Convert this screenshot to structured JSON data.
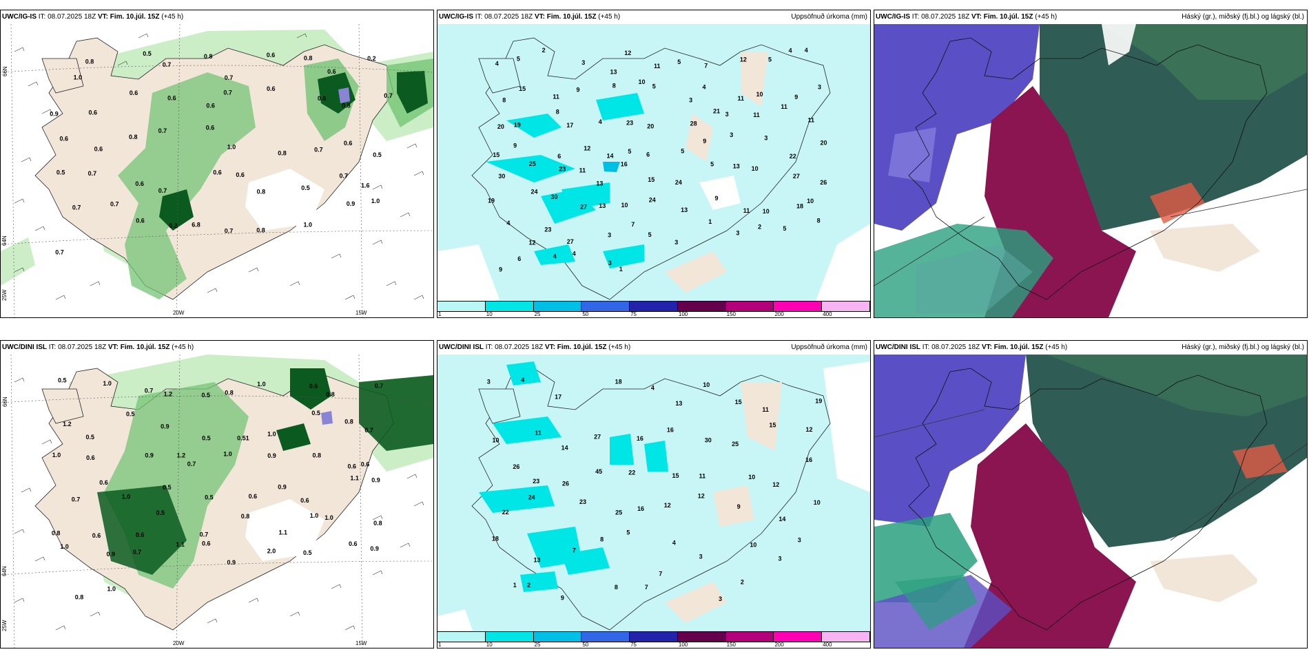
{
  "run_info": "IT: 08.07.2025 18Z",
  "vt_label": "VT:",
  "vt_value": "Fim. 10.júl. 15Z",
  "lead": "(+45 h)",
  "models": [
    "UWC/IG-IS",
    "UWC/DINI ISL"
  ],
  "precip_title": "Uppsöfnuð úrkoma (mm)",
  "cloud_title": "Háský (gr.), miðský (fj.bl.) og lágský (bl.)",
  "legend": {
    "ticks": [
      "1",
      "10",
      "25",
      "50",
      "75",
      "100",
      "150",
      "200",
      "400"
    ],
    "colors": [
      "#b9f7f7",
      "#00e6e6",
      "#00bfe6",
      "#3366e6",
      "#2222aa",
      "#66004d",
      "#b3007a",
      "#ff00b3",
      "#f7b3f2"
    ]
  },
  "axes": {
    "lon_labels": [
      "20W",
      "15W"
    ],
    "lat_labels": [
      "66N",
      "64N"
    ],
    "lon_left": "25W"
  },
  "colors": {
    "land": "#f2e6d9",
    "ocean_precip": "#c8f6f6",
    "green_light": "#cceec6",
    "green_mid": "#74c476",
    "green_dark": "#0b5b20",
    "high_cloud": "#2f5d55",
    "mid_cloud": "#8b1550",
    "low_cloud": "#5a4fc4"
  },
  "rows": [
    {
      "wind_labels": [
        "1.0",
        "0.8",
        "0.5",
        "0.7",
        "0.8",
        "0.7",
        "0.6",
        "0.8",
        "0.6",
        "0.2",
        "0.9",
        "0.6",
        "0.6",
        "0.6",
        "0.6",
        "0.7",
        "0.6",
        "0.6",
        "0.8",
        "0.7",
        "0.6",
        "0.6",
        "0.8",
        "0.7",
        "0.6",
        "1.0",
        "0.8",
        "0.7",
        "0.6",
        "0.5",
        "0.5",
        "0.7",
        "0.6",
        "0.7",
        "0.6",
        "0.6",
        "0.8",
        "0.5",
        "0.7",
        "1.6",
        "0.7",
        "0.7",
        "0.6",
        "0.2",
        "6.8",
        "0.7",
        "0.8",
        "1.0",
        "0.9",
        "1.0",
        "0.7"
      ],
      "precip_labels": [
        "4",
        "5",
        "2",
        "3",
        "13",
        "12",
        "11",
        "5",
        "7",
        "12",
        "5",
        "4",
        "4",
        "8",
        "15",
        "11",
        "9",
        "8",
        "10",
        "5",
        "3",
        "4",
        "11",
        "10",
        "9",
        "3",
        "20",
        "19",
        "8",
        "17",
        "4",
        "23",
        "20",
        "28",
        "21",
        "3",
        "11",
        "11",
        "11",
        "15",
        "9",
        "6",
        "12",
        "14",
        "5",
        "6",
        "5",
        "9",
        "3",
        "3",
        "22",
        "20",
        "30",
        "25",
        "23",
        "11",
        "13",
        "16",
        "15",
        "24",
        "5",
        "13",
        "10",
        "27",
        "26",
        "19",
        "24",
        "30",
        "27",
        "13",
        "10",
        "24",
        "13",
        "9",
        "11",
        "10",
        "18",
        "10",
        "4",
        "12",
        "23",
        "27",
        "3",
        "7",
        "5",
        "3",
        "1",
        "3",
        "2",
        "5",
        "8",
        "9",
        "6",
        "4",
        "4",
        "3",
        "1"
      ]
    },
    {
      "wind_labels": [
        "0.5",
        "1.0",
        "0.7",
        "1.2",
        "0.5",
        "0.8",
        "1.0",
        "0.6",
        "0.8",
        "0.7",
        "1.2",
        "0.5",
        "0.5",
        "0.9",
        "0.5",
        "0.51",
        "1.0",
        "0.5",
        "0.8",
        "0.7",
        "1.0",
        "0.6",
        "0.9",
        "1.2",
        "0.7",
        "1.0",
        "0.9",
        "0.8",
        "0.6",
        "0.6",
        "0.7",
        "0.6",
        "1.0",
        "0.5",
        "0.5",
        "0.6",
        "0.9",
        "0.6",
        "1.1",
        "0.9",
        "0.8",
        "0.6",
        "0.6",
        "0.5",
        "0.7",
        "0.8",
        "1.1",
        "1.0",
        "1.0",
        "0.8",
        "1.0",
        "0.9",
        "0.7",
        "1.1",
        "0.6",
        "0.9",
        "2.0",
        "0.5",
        "0.6",
        "0.9",
        "0.8",
        "1.0"
      ],
      "precip_labels": [
        "3",
        "4",
        "17",
        "18",
        "4",
        "13",
        "10",
        "15",
        "11",
        "19",
        "10",
        "11",
        "14",
        "27",
        "16",
        "16",
        "30",
        "25",
        "15",
        "12",
        "26",
        "23",
        "26",
        "45",
        "22",
        "15",
        "11",
        "10",
        "12",
        "16",
        "22",
        "24",
        "23",
        "25",
        "16",
        "12",
        "12",
        "9",
        "14",
        "10",
        "18",
        "13",
        "7",
        "8",
        "5",
        "4",
        "3",
        "10",
        "3",
        "3",
        "1",
        "2",
        "9",
        "8",
        "7",
        "7",
        "3",
        "2"
      ]
    }
  ]
}
